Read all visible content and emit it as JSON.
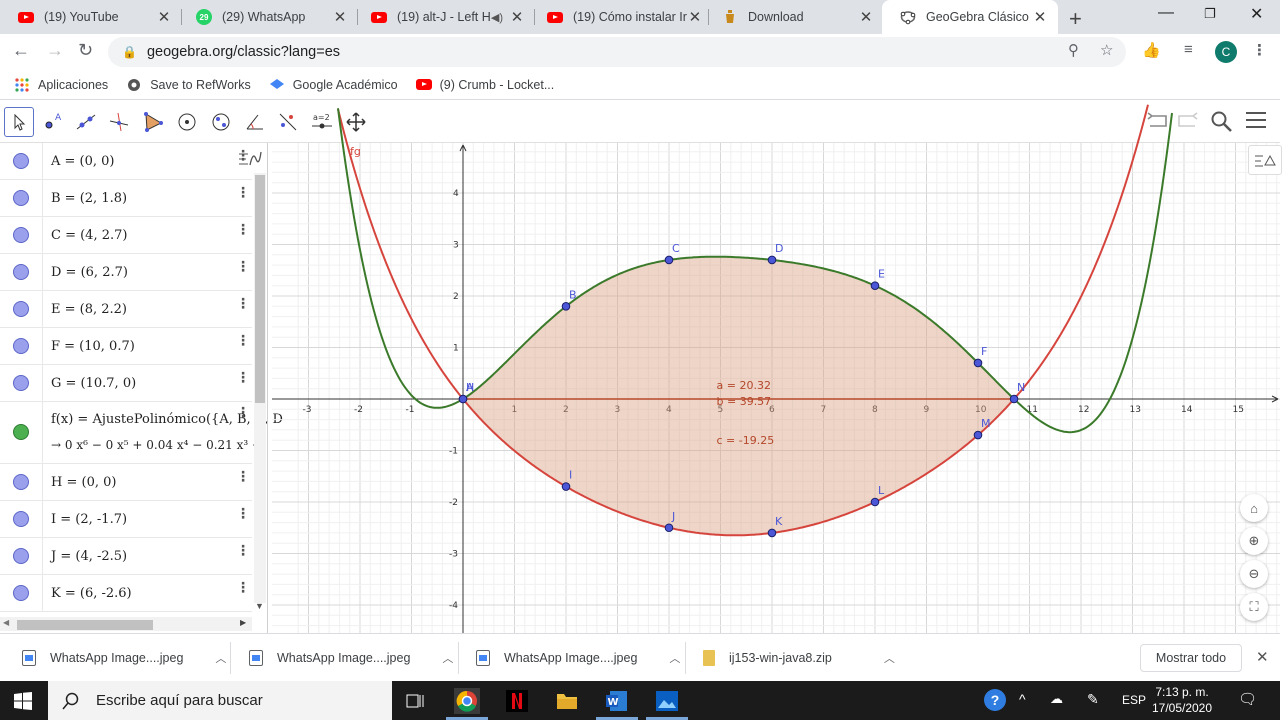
{
  "browser": {
    "tabs": [
      {
        "title": "(19) YouTube",
        "icon": "youtube-icon"
      },
      {
        "title": "(29) WhatsApp",
        "icon": "whatsapp-icon",
        "badge": "29"
      },
      {
        "title": "(19) alt-J - Left H",
        "icon": "youtube-icon"
      },
      {
        "title": "(19) Cómo instalar Ir",
        "icon": "youtube-icon"
      },
      {
        "title": "Download",
        "icon": "download-page-icon"
      },
      {
        "title": "GeoGebra Clásico",
        "icon": "geogebra-icon",
        "active": true
      }
    ],
    "url": "geogebra.org/classic?lang=es",
    "bookmarks": [
      {
        "label": "Aplicaciones",
        "icon": "apps-grid-icon"
      },
      {
        "label": "Save to RefWorks",
        "icon": "refworks-icon"
      },
      {
        "label": "Google Académico",
        "icon": "scholar-icon"
      },
      {
        "label": "(9) Crumb - Locket...",
        "icon": "youtube-icon"
      }
    ],
    "profile_initial": "C"
  },
  "algebra": {
    "rows": [
      {
        "expr": "A = (0, 0)"
      },
      {
        "expr": "B = (2, 1.8)"
      },
      {
        "expr": "C = (4, 2.7)"
      },
      {
        "expr": "D = (6, 2.7)"
      },
      {
        "expr": "E = (8, 2.2)"
      },
      {
        "expr": "F = (10, 0.7)"
      },
      {
        "expr": "G = (10.7, 0)"
      },
      {
        "expr": "f(x) = AjustePolinómico({A, B, C, D",
        "sub": "→  0 x⁶ − 0 x⁵ + 0.04 x⁴ − 0.21 x³ +"
      },
      {
        "expr": "H = (0, 0)"
      },
      {
        "expr": "I = (2, -1.7)"
      },
      {
        "expr": "J = (4, -2.5)"
      },
      {
        "expr": "K = (6, -2.6)"
      }
    ]
  },
  "graphics": {
    "curve_label": "fg",
    "x_ticks": [
      "-3",
      "-2",
      "-1",
      "1",
      "2",
      "3",
      "4",
      "5",
      "6",
      "7",
      "8",
      "9",
      "10",
      "11",
      "12",
      "13",
      "14",
      "15"
    ],
    "y_ticks": [
      "4",
      "3",
      "2",
      "1",
      "-1",
      "-2",
      "-3",
      "-4"
    ],
    "annotations": {
      "a": "a = 20.32",
      "b": "b = 39.57",
      "c": "c = -19.25"
    },
    "upper_points": [
      {
        "name": "A",
        "x": 0,
        "y": 0
      },
      {
        "name": "B",
        "x": 2,
        "y": 1.8
      },
      {
        "name": "C",
        "x": 4,
        "y": 2.7
      },
      {
        "name": "D",
        "x": 6,
        "y": 2.7
      },
      {
        "name": "E",
        "x": 8,
        "y": 2.2
      },
      {
        "name": "F",
        "x": 10,
        "y": 0.7
      },
      {
        "name": "N",
        "x": 10.7,
        "y": 0
      }
    ],
    "lower_points": [
      {
        "name": "H",
        "x": 0,
        "y": 0
      },
      {
        "name": "I",
        "x": 2,
        "y": -1.7
      },
      {
        "name": "J",
        "x": 4,
        "y": -2.5
      },
      {
        "name": "K",
        "x": 6,
        "y": -2.6
      },
      {
        "name": "L",
        "x": 8,
        "y": -2.0
      },
      {
        "name": "M",
        "x": 10,
        "y": -0.7
      }
    ],
    "colors": {
      "upper": "#3b7a2a",
      "lower": "#d6453d",
      "fill": "#d9a183",
      "point": "#4b57d6",
      "label": "#b5482c"
    }
  },
  "downloads": {
    "items": [
      "WhatsApp Image....jpeg",
      "WhatsApp Image....jpeg",
      "WhatsApp Image....jpeg",
      "ij153-win-java8.zip"
    ],
    "show_all": "Mostrar todo"
  },
  "taskbar": {
    "search_placeholder": "Escribe aquí para buscar",
    "lang": "ESP",
    "time": "7:13 p. m.",
    "date": "17/05/2020"
  }
}
